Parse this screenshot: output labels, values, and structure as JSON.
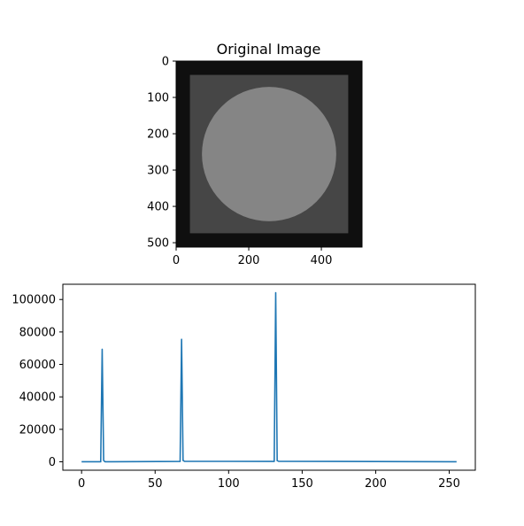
{
  "chart_data": [
    {
      "type": "image",
      "title": "Original Image",
      "xticks": [
        0,
        200,
        400
      ],
      "yticks": [
        0,
        100,
        200,
        300,
        400,
        500
      ],
      "xlim": [
        0,
        512
      ],
      "ylim": [
        512,
        0
      ],
      "content": {
        "background_value": 15,
        "square": {
          "extent": [
            38,
            474
          ],
          "value": 70
        },
        "circle": {
          "center": [
            256,
            256
          ],
          "radius": 185,
          "value": 133
        }
      }
    },
    {
      "type": "line",
      "title": "",
      "xlabel": "",
      "ylabel": "",
      "xlim": [
        -12.75,
        267.75
      ],
      "ylim": [
        -5200,
        109400
      ],
      "xticks": [
        0,
        50,
        100,
        150,
        200,
        250
      ],
      "yticks": [
        0,
        20000,
        40000,
        60000,
        80000,
        100000
      ],
      "series": [
        {
          "color": "#1f77b4",
          "x": [
            0,
            13,
            14,
            15,
            16,
            67,
            68,
            69,
            70,
            131,
            132,
            133,
            134,
            255
          ],
          "values": [
            0,
            0,
            69300,
            800,
            0,
            200,
            75500,
            800,
            300,
            200,
            104200,
            700,
            300,
            0
          ]
        }
      ]
    }
  ],
  "colors": {
    "line": "#1f77b4",
    "axis": "#000000",
    "background": "#ffffff"
  }
}
